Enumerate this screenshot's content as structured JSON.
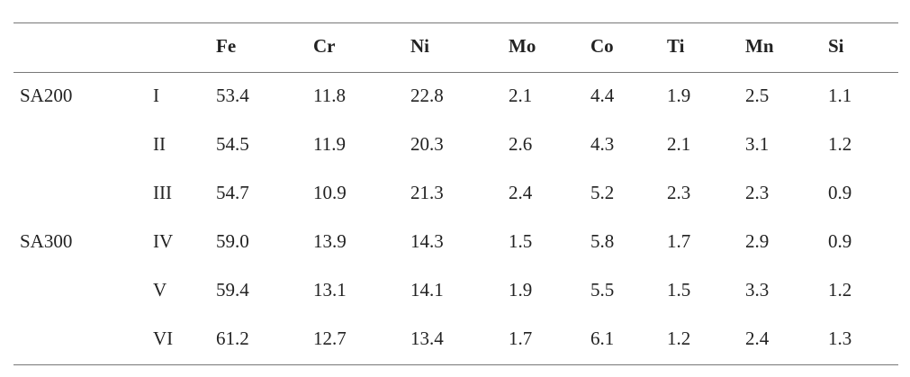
{
  "table": {
    "columns": [
      "Fe",
      "Cr",
      "Ni",
      "Mo",
      "Co",
      "Ti",
      "Mn",
      "Si"
    ],
    "groups": [
      {
        "name": "SA200",
        "rows": [
          {
            "sample": "I",
            "values": [
              "53.4",
              "11.8",
              "22.8",
              "2.1",
              "4.4",
              "1.9",
              "2.5",
              "1.1"
            ]
          },
          {
            "sample": "II",
            "values": [
              "54.5",
              "11.9",
              "20.3",
              "2.6",
              "4.3",
              "2.1",
              "3.1",
              "1.2"
            ]
          },
          {
            "sample": "III",
            "values": [
              "54.7",
              "10.9",
              "21.3",
              "2.4",
              "5.2",
              "2.3",
              "2.3",
              "0.9"
            ]
          }
        ]
      },
      {
        "name": "SA300",
        "rows": [
          {
            "sample": "IV",
            "values": [
              "59.0",
              "13.9",
              "14.3",
              "1.5",
              "5.8",
              "1.7",
              "2.9",
              "0.9"
            ]
          },
          {
            "sample": "V",
            "values": [
              "59.4",
              "13.1",
              "14.1",
              "1.9",
              "5.5",
              "1.5",
              "3.3",
              "1.2"
            ]
          },
          {
            "sample": "VI",
            "values": [
              "61.2",
              "12.7",
              "13.4",
              "1.7",
              "6.1",
              "1.2",
              "2.4",
              "1.3"
            ]
          }
        ]
      }
    ]
  }
}
